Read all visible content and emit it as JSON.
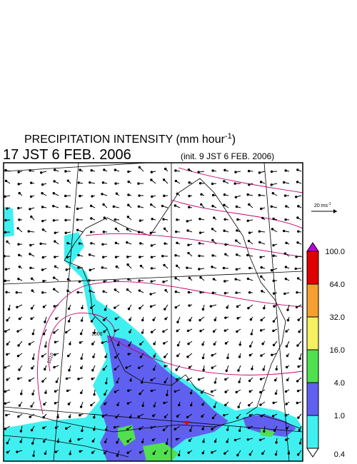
{
  "header": {
    "title": "PRECIPITATION INTENSITY (mm hour",
    "title_unit_power": "-1",
    "title_close": ")",
    "valid_time": "17 JST 6 FEB. 2006",
    "init_time": "(init. 9 JST 6 FEB. 2006)"
  },
  "wind_scale": {
    "label": "20 ms",
    "power": "-1"
  },
  "contour_labels": [
    "1000",
    "1010"
  ],
  "colorbar": {
    "levels": [
      {
        "label": "100.0",
        "color": "#e00000"
      },
      {
        "label": "64.0",
        "color": "#f5a030"
      },
      {
        "label": "32.0",
        "color": "#f5f060"
      },
      {
        "label": "16.0",
        "color": "#50e050"
      },
      {
        "label": "4.0",
        "color": "#6060f0"
      },
      {
        "label": "1.0",
        "color": "#40f0f0"
      },
      {
        "label": "0.4",
        "color": "#ffffff"
      }
    ],
    "over_color": "#c000e0"
  }
}
